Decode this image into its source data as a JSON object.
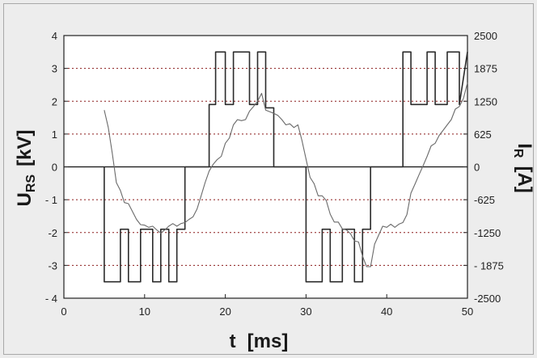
{
  "chart_data": {
    "type": "line",
    "xlabel": {
      "main": "t",
      "unit": "[ms]"
    },
    "ylabel_left": {
      "main": "U",
      "sub": "RS",
      "unit": "[kV]"
    },
    "ylabel_right": {
      "main": "I",
      "sub": "R",
      "unit": "[A]"
    },
    "xlim": [
      0,
      50
    ],
    "ylim_left": [
      -4,
      4
    ],
    "ylim_right": [
      -2500,
      2500
    ],
    "x_ticks": [
      "0",
      "10",
      "20",
      "30",
      "40",
      "50"
    ],
    "y_left_ticks": [
      "4",
      "3",
      "2",
      "1",
      "0",
      "- 1",
      "-2",
      "-3",
      "- 4"
    ],
    "y_right_ticks": [
      "2500",
      "1875",
      "1250",
      "625",
      "0",
      "-625",
      "-1250",
      "- 1875",
      "-2500"
    ],
    "grid": "horizontal dotted",
    "colors": {
      "voltage": "#2b2b2b",
      "current": "#6a6a6a",
      "grid": "#8a1a1a"
    },
    "series": [
      {
        "axis": "left",
        "style": "step",
        "x": [
          5,
          5,
          7,
          7,
          8,
          8,
          9.5,
          9.5,
          11,
          11,
          12,
          12,
          13,
          13,
          14,
          14,
          15,
          15,
          18,
          18,
          18.8,
          18.8,
          20,
          20,
          21,
          21,
          23,
          23,
          24,
          24,
          25,
          25,
          26,
          26,
          30,
          30,
          32,
          32,
          33,
          33,
          34.5,
          34.5,
          36,
          36,
          37,
          37,
          38,
          38,
          42,
          42,
          43,
          43,
          45,
          45,
          46,
          46,
          47.5,
          47.5,
          49,
          49,
          50
        ],
        "y": [
          0,
          -3.5,
          -3.5,
          -1.9,
          -1.9,
          -3.5,
          -3.5,
          -1.9,
          -1.9,
          -3.5,
          -3.5,
          -1.9,
          -1.9,
          -3.5,
          -3.5,
          -1.9,
          -1.9,
          0,
          0,
          1.9,
          1.9,
          3.5,
          3.5,
          1.9,
          1.9,
          3.5,
          3.5,
          1.9,
          1.9,
          3.5,
          3.5,
          1.8,
          1.8,
          0,
          0,
          -3.5,
          -3.5,
          -1.9,
          -1.9,
          -3.5,
          -3.5,
          -1.9,
          -1.9,
          -3.5,
          -3.5,
          -1.9,
          -1.9,
          0,
          0,
          3.5,
          3.5,
          1.9,
          1.9,
          3.5,
          3.5,
          1.9,
          1.9,
          3.5,
          3.5,
          1.9,
          3.5
        ]
      },
      {
        "axis": "right",
        "style": "line",
        "x": [
          5,
          5.5,
          6,
          6.5,
          7,
          7.5,
          8,
          8.5,
          9,
          9.5,
          10,
          10.5,
          11,
          11.5,
          12,
          12.5,
          13,
          13.5,
          14,
          14.5,
          15,
          15.5,
          16,
          16.5,
          17,
          17.5,
          18,
          18.5,
          19,
          19.5,
          20,
          20.5,
          21,
          21.5,
          22,
          22.5,
          23,
          23.5,
          24,
          24.5,
          25,
          25.5,
          26,
          26.5,
          27,
          27.5,
          28,
          28.5,
          29,
          29.5,
          30,
          30.5,
          31,
          31.5,
          32,
          32.5,
          33,
          33.5,
          34,
          34.5,
          35,
          35.5,
          36,
          36.5,
          37,
          37.5,
          38,
          38.5,
          39,
          39.5,
          40,
          40.5,
          41,
          41.5,
          42,
          42.5,
          43,
          43.5,
          44,
          44.5,
          45,
          45.5,
          46,
          46.5,
          47,
          47.5,
          48,
          48.5,
          49,
          49.5,
          50
        ],
        "y": [
          1080,
          750,
          250,
          -300,
          -450,
          -680,
          -700,
          -850,
          -1000,
          -1100,
          -1110,
          -1150,
          -1130,
          -1200,
          -1260,
          -1200,
          -1130,
          -1080,
          -1130,
          -1080,
          -1060,
          -1000,
          -950,
          -800,
          -550,
          -300,
          -80,
          50,
          140,
          200,
          450,
          550,
          800,
          900,
          880,
          900,
          1060,
          1150,
          1250,
          1400,
          1080,
          1050,
          1020,
          980,
          900,
          800,
          820,
          750,
          800,
          500,
          150,
          -200,
          -320,
          -550,
          -550,
          -640,
          -900,
          -1050,
          -1050,
          -1180,
          -1200,
          -1270,
          -1410,
          -1430,
          -1700,
          -1900,
          -1900,
          -1470,
          -1300,
          -1130,
          -1150,
          -1090,
          -1150,
          -1090,
          -1060,
          -910,
          -500,
          -330,
          -150,
          20,
          200,
          400,
          450,
          600,
          700,
          800,
          900,
          1100,
          1150,
          1300,
          1600
        ]
      }
    ]
  }
}
